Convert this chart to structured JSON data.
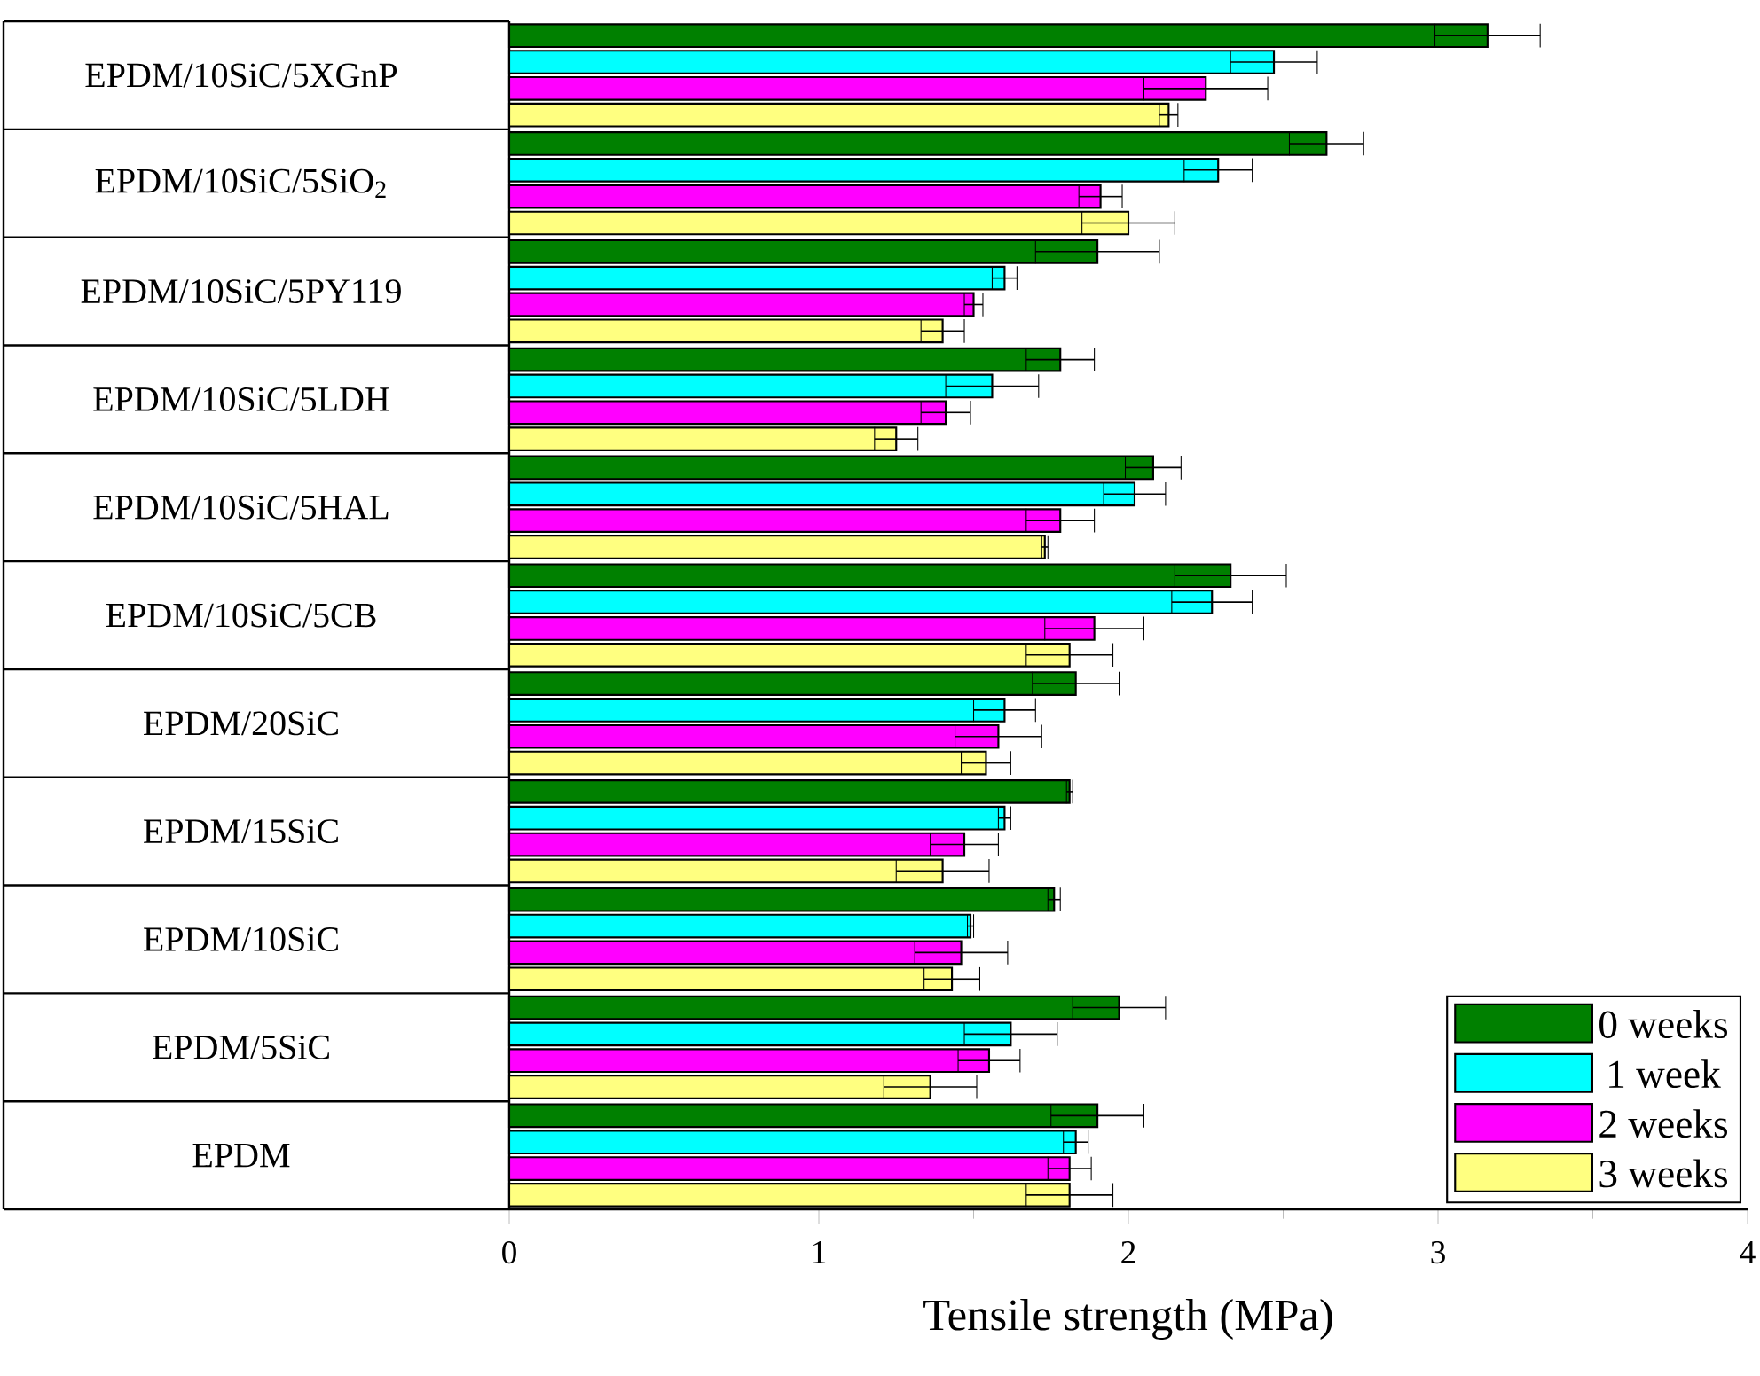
{
  "chart_data": {
    "type": "bar",
    "orientation": "horizontal",
    "xlabel": "Tensile strength (MPa)",
    "categories": [
      "EPDM/10SiC/5XGnP",
      "EPDM/10SiC/5SiO$_{2}$",
      "EPDM/10SiC/5PY119",
      "EPDM/10SiC/5LDH",
      "EPDM/10SiC/5HAL",
      "EPDM/10SiC/5CB",
      "EPDM/20SiC",
      "EPDM/15SiC",
      "EPDM/10SiC",
      "EPDM/5SiC",
      "EPDM"
    ],
    "xlim": [
      0,
      4
    ],
    "xticks": [
      0,
      1,
      2,
      3,
      4
    ],
    "legend": "bottom right",
    "grid": false,
    "series": [
      {
        "name": "0 weeks",
        "color": "#008000",
        "values": [
          3.16,
          2.64,
          1.9,
          1.78,
          2.08,
          2.33,
          1.83,
          1.81,
          1.76,
          1.97,
          1.9
        ],
        "errors": [
          0.17,
          0.12,
          0.2,
          0.11,
          0.09,
          0.18,
          0.14,
          0.01,
          0.02,
          0.15,
          0.15
        ]
      },
      {
        "name": "1 week",
        "color": "#00ffff",
        "values": [
          2.47,
          2.29,
          1.6,
          1.56,
          2.02,
          2.27,
          1.6,
          1.6,
          1.49,
          1.62,
          1.83
        ],
        "errors": [
          0.14,
          0.11,
          0.04,
          0.15,
          0.1,
          0.13,
          0.1,
          0.02,
          0.01,
          0.15,
          0.04
        ]
      },
      {
        "name": "2 weeks",
        "color": "#ff00ff",
        "values": [
          2.25,
          1.91,
          1.5,
          1.41,
          1.78,
          1.89,
          1.58,
          1.47,
          1.46,
          1.55,
          1.81
        ],
        "errors": [
          0.2,
          0.07,
          0.03,
          0.08,
          0.11,
          0.16,
          0.14,
          0.11,
          0.15,
          0.1,
          0.07
        ]
      },
      {
        "name": "3 weeks",
        "color": "#ffff80",
        "values": [
          2.13,
          2.0,
          1.4,
          1.25,
          1.73,
          1.81,
          1.54,
          1.4,
          1.43,
          1.36,
          1.81
        ],
        "errors": [
          0.03,
          0.15,
          0.07,
          0.07,
          0.01,
          0.14,
          0.08,
          0.15,
          0.09,
          0.15,
          0.14
        ]
      }
    ]
  }
}
